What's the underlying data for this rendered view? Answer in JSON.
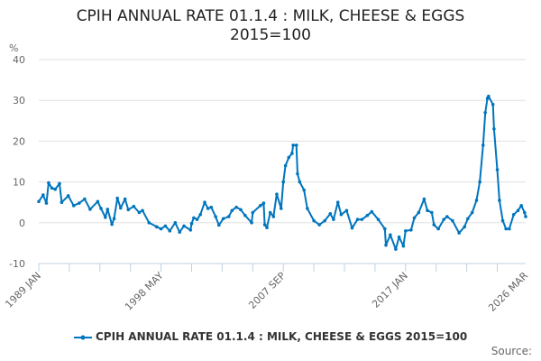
{
  "chart_data": {
    "type": "line",
    "title": "CPIH ANNUAL RATE 01.1.4 : MILK, CHEESE & EGGS 2015=100",
    "title_lines": [
      "CPIH ANNUAL RATE 01.1.4 : MILK, CHEESE & EGGS",
      "2015=100"
    ],
    "ylabel": "%",
    "ylim": [
      -10,
      40
    ],
    "yticks": [
      -10,
      0,
      10,
      20,
      30,
      40
    ],
    "xlim": [
      "1989-01",
      "2026-03"
    ],
    "xtick_labels": [
      {
        "date": "1989-01",
        "label": "1989 JAN"
      },
      {
        "date": "1998-05",
        "label": "1998 MAY"
      },
      {
        "date": "2007-09",
        "label": "2007 SEP"
      },
      {
        "date": "2017-01",
        "label": "2017 JAN"
      },
      {
        "date": "2026-03",
        "label": "2026 MAR"
      }
    ],
    "grid": "horizontal",
    "legend_position": "bottom",
    "color": "#0075be",
    "series": [
      {
        "name": "CPIH ANNUAL RATE 01.1.4 : MILK, CHEESE & EGGS 2015=100",
        "points": [
          [
            "1989-01",
            5.2
          ],
          [
            "1989-05",
            6.8
          ],
          [
            "1989-08",
            4.8
          ],
          [
            "1989-10",
            9.8
          ],
          [
            "1990-01",
            8.5
          ],
          [
            "1990-04",
            8.2
          ],
          [
            "1990-08",
            9.6
          ],
          [
            "1990-10",
            5.0
          ],
          [
            "1991-04",
            6.6
          ],
          [
            "1991-09",
            4.2
          ],
          [
            "1992-02",
            4.8
          ],
          [
            "1992-07",
            5.8
          ],
          [
            "1992-12",
            3.3
          ],
          [
            "1993-07",
            5.2
          ],
          [
            "1993-10",
            3.5
          ],
          [
            "1994-02",
            1.3
          ],
          [
            "1994-04",
            3.3
          ],
          [
            "1994-08",
            -0.4
          ],
          [
            "1994-10",
            1.0
          ],
          [
            "1995-01",
            6.0
          ],
          [
            "1995-04",
            3.6
          ],
          [
            "1995-08",
            5.8
          ],
          [
            "1995-11",
            3.2
          ],
          [
            "1996-04",
            4.0
          ],
          [
            "1996-09",
            2.5
          ],
          [
            "1996-12",
            3.0
          ],
          [
            "1997-06",
            0.0
          ],
          [
            "1998-01",
            -1.0
          ],
          [
            "1998-05",
            -1.5
          ],
          [
            "1998-09",
            -0.8
          ],
          [
            "1999-01",
            -2.0
          ],
          [
            "1999-06",
            0.0
          ],
          [
            "1999-10",
            -2.3
          ],
          [
            "2000-02",
            -0.8
          ],
          [
            "2000-08",
            -1.8
          ],
          [
            "2000-09",
            -0.2
          ],
          [
            "2000-11",
            1.2
          ],
          [
            "2001-02",
            0.8
          ],
          [
            "2001-05",
            2.0
          ],
          [
            "2001-09",
            5.0
          ],
          [
            "2001-12",
            3.5
          ],
          [
            "2002-03",
            3.8
          ],
          [
            "2002-07",
            1.5
          ],
          [
            "2002-10",
            -0.6
          ],
          [
            "2003-02",
            1.0
          ],
          [
            "2003-07",
            1.5
          ],
          [
            "2003-10",
            3.0
          ],
          [
            "2004-02",
            3.8
          ],
          [
            "2004-06",
            3.2
          ],
          [
            "2004-10",
            1.8
          ],
          [
            "2005-04",
            0.0
          ],
          [
            "2005-05",
            2.5
          ],
          [
            "2005-12",
            4.2
          ],
          [
            "2006-03",
            4.8
          ],
          [
            "2006-04",
            -0.5
          ],
          [
            "2006-06",
            -1.2
          ],
          [
            "2006-09",
            2.5
          ],
          [
            "2006-12",
            1.5
          ],
          [
            "2007-03",
            7.0
          ],
          [
            "2007-07",
            3.5
          ],
          [
            "2007-09",
            10.0
          ],
          [
            "2007-11",
            14.0
          ],
          [
            "2008-02",
            16.0
          ],
          [
            "2008-05",
            17.0
          ],
          [
            "2008-06",
            19.0
          ],
          [
            "2008-09",
            19.0
          ],
          [
            "2008-10",
            12.0
          ],
          [
            "2008-12",
            10.0
          ],
          [
            "2009-04",
            8.0
          ],
          [
            "2009-07",
            3.5
          ],
          [
            "2010-01",
            0.5
          ],
          [
            "2010-06",
            -0.5
          ],
          [
            "2010-11",
            0.5
          ],
          [
            "2011-04",
            2.2
          ],
          [
            "2011-07",
            0.8
          ],
          [
            "2011-11",
            5.0
          ],
          [
            "2012-02",
            2.0
          ],
          [
            "2012-07",
            3.0
          ],
          [
            "2012-12",
            -1.3
          ],
          [
            "2013-05",
            0.8
          ],
          [
            "2013-09",
            0.8
          ],
          [
            "2014-02",
            1.8
          ],
          [
            "2014-06",
            2.7
          ],
          [
            "2014-12",
            0.8
          ],
          [
            "2015-06",
            -1.5
          ],
          [
            "2015-07",
            -5.5
          ],
          [
            "2015-11",
            -3.0
          ],
          [
            "2016-04",
            -6.5
          ],
          [
            "2016-07",
            -3.5
          ],
          [
            "2016-11",
            -5.7
          ],
          [
            "2017-01",
            -2.0
          ],
          [
            "2017-06",
            -1.8
          ],
          [
            "2017-09",
            1.2
          ],
          [
            "2018-01",
            2.5
          ],
          [
            "2018-06",
            5.8
          ],
          [
            "2018-09",
            3.0
          ],
          [
            "2019-01",
            2.5
          ],
          [
            "2019-03",
            -0.5
          ],
          [
            "2019-07",
            -1.5
          ],
          [
            "2019-12",
            0.8
          ],
          [
            "2020-03",
            1.5
          ],
          [
            "2020-08",
            0.5
          ],
          [
            "2021-02",
            -2.5
          ],
          [
            "2021-07",
            -1.0
          ],
          [
            "2021-10",
            1.0
          ],
          [
            "2022-02",
            2.5
          ],
          [
            "2022-06",
            5.5
          ],
          [
            "2022-09",
            10.0
          ],
          [
            "2022-12",
            19.0
          ],
          [
            "2023-02",
            27.0
          ],
          [
            "2023-04",
            30.5
          ],
          [
            "2023-05",
            31.0
          ],
          [
            "2023-09",
            29.0
          ],
          [
            "2023-10",
            23.0
          ],
          [
            "2024-01",
            13.0
          ],
          [
            "2024-03",
            5.5
          ],
          [
            "2024-06",
            0.5
          ],
          [
            "2024-09",
            -1.5
          ],
          [
            "2024-12",
            -1.5
          ],
          [
            "2025-04",
            2.0
          ],
          [
            "2025-08",
            3.0
          ],
          [
            "2025-11",
            4.2
          ],
          [
            "2026-02",
            2.5
          ],
          [
            "2026-03",
            1.5
          ]
        ]
      }
    ],
    "source_label": "Source:"
  }
}
